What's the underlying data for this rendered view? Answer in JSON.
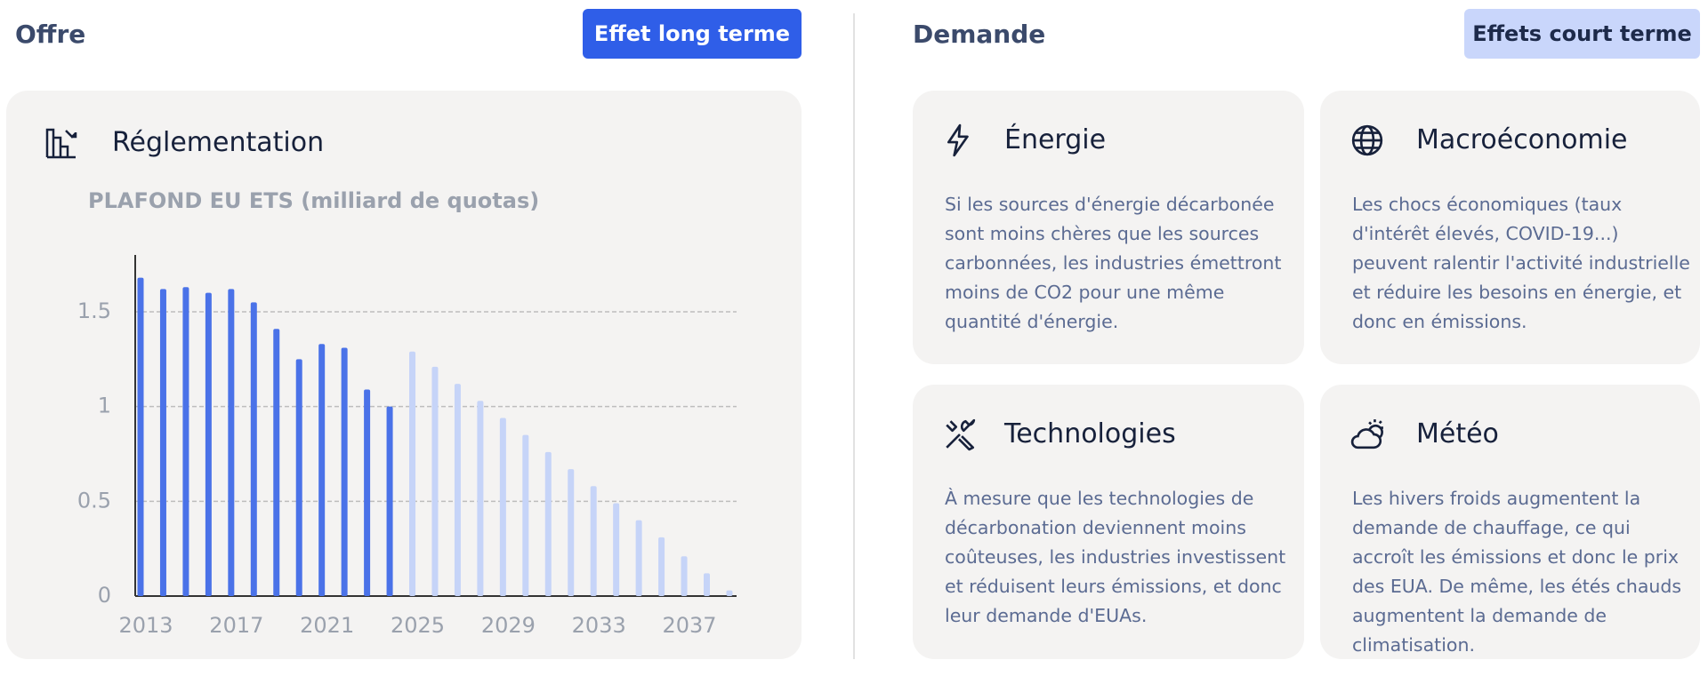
{
  "offre": {
    "title": "Offre",
    "button": "Effet long terme",
    "card_title": "Réglementation",
    "chart_data": {
      "type": "bar",
      "title": "PLAFOND EU ETS (milliard de quotas)",
      "categories": [
        "2013",
        null,
        null,
        null,
        "2017",
        null,
        null,
        null,
        "2021",
        null,
        null,
        null,
        "2025",
        null,
        null,
        null,
        "2029",
        null,
        null,
        null,
        "2033",
        null,
        null,
        null,
        "2037",
        null,
        null
      ],
      "series": [
        {
          "color": "#4a72e8",
          "values": [
            1.68,
            1.62,
            1.63,
            1.6,
            1.62,
            1.55,
            1.41,
            1.25,
            1.33,
            1.31,
            1.09,
            1.0,
            null,
            null,
            null,
            null,
            null,
            null,
            null,
            null,
            null,
            null,
            null,
            null,
            null,
            null,
            null
          ]
        },
        {
          "color": "#c6d4f8",
          "values": [
            null,
            null,
            null,
            null,
            null,
            null,
            null,
            null,
            null,
            null,
            null,
            null,
            1.29,
            1.21,
            1.12,
            1.03,
            0.94,
            0.85,
            0.76,
            0.67,
            0.58,
            0.49,
            0.4,
            0.31,
            0.21,
            0.12,
            0.03
          ]
        }
      ],
      "ylim": [
        0,
        1.8
      ],
      "yticks": [
        0,
        0.5,
        1,
        1.5
      ],
      "grid": true
    }
  },
  "demande": {
    "title": "Demande",
    "button": "Effets court terme",
    "cards": [
      {
        "title": "Énergie",
        "text": "Si les sources d'énergie décarbonée sont moins chères que les sources carbonnées, les industries émettront moins de CO2 pour une même quantité d'énergie."
      },
      {
        "title": "Macroéconomie",
        "text": "Les chocs économiques (taux d'intérêt élevés, COVID-19...) peuvent ralentir l'activité industrielle et réduire les besoins en énergie, et donc en émissions."
      },
      {
        "title": "Technologies",
        "text": "À mesure que les technologies de décarbonation deviennent moins coûteuses, les industries investissent et réduisent leurs émissions, et donc leur demande d'EUAs."
      },
      {
        "title": "Météo",
        "text": "Les hivers froids augmentent la demande de chauffage, ce qui accroît les émissions et donc le prix des EUA. De même, les étés chauds augmentent la demande de climatisation."
      }
    ]
  }
}
